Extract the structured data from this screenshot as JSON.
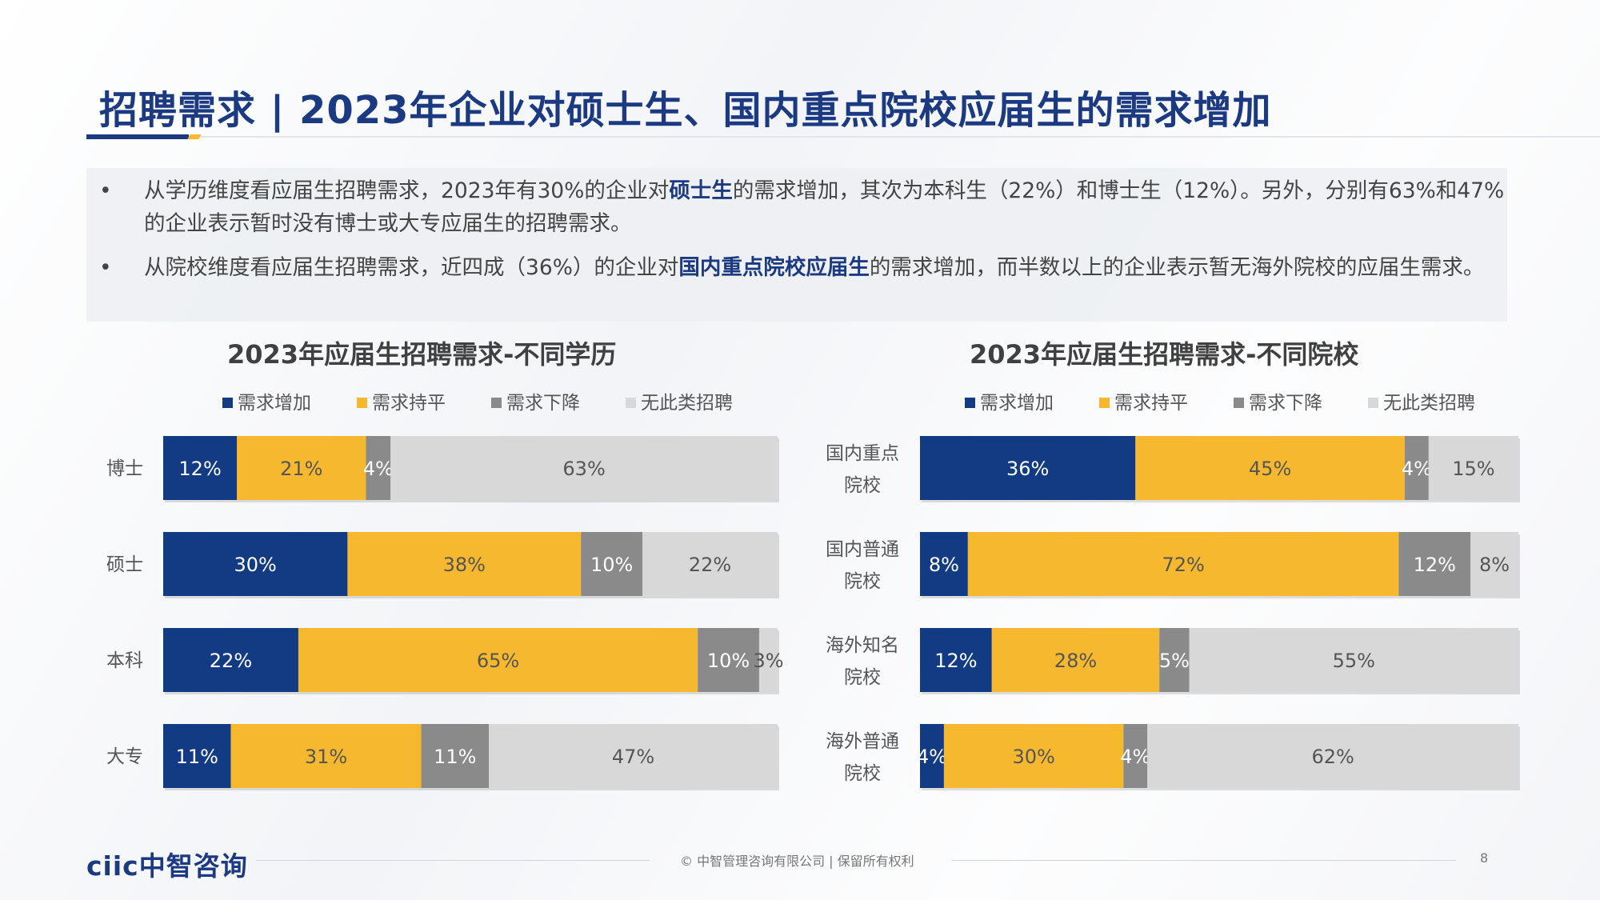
{
  "slide": {
    "title": "招聘需求 | 2023年企业对硕士生、国内重点院校应届生的需求增加",
    "page_number": "8",
    "footer_text": "© 中智管理咨询有限公司 | 保留所有权利",
    "logo_text": "ciic中智咨询"
  },
  "bullets": [
    {
      "dot": "•",
      "pre": "从学历维度看应届生招聘需求，2023年有30%的企业对",
      "bold": "硕士生",
      "post": "的需求增加，其次为本科生（22%）和博士生（12%）。另外，分别有63%和47%的企业表示暂时没有博士或大专应届生的招聘需求。"
    },
    {
      "dot": "•",
      "pre": "从院校维度看应届生招聘需求，近四成（36%）的企业对",
      "bold": "国内重点院校应届生",
      "post": "的需求增加，而半数以上的企业表示暂无海外院校的应届生需求。"
    }
  ],
  "colors": {
    "increase": "#123b84",
    "flat": "#f5b82e",
    "decrease": "#8a8a8a",
    "none": "#d8d8d8"
  },
  "chart_data": [
    {
      "type": "bar",
      "orientation": "horizontal",
      "stacked": "100%",
      "title": "2023年应届生招聘需求-不同学历",
      "categories": [
        "博士",
        "硕士",
        "本科",
        "大专"
      ],
      "series": [
        {
          "name": "需求增加",
          "values": [
            12,
            30,
            22,
            11
          ]
        },
        {
          "name": "需求持平",
          "values": [
            21,
            38,
            65,
            31
          ]
        },
        {
          "name": "需求下降",
          "values": [
            4,
            10,
            10,
            11
          ]
        },
        {
          "name": "无此类招聘",
          "values": [
            63,
            22,
            3,
            47
          ]
        }
      ],
      "legend_position": "top",
      "grid": false
    },
    {
      "type": "bar",
      "orientation": "horizontal",
      "stacked": "100%",
      "title": "2023年应届生招聘需求-不同院校",
      "categories": [
        "国内重点院校",
        "国内普通院校",
        "海外知名院校",
        "海外普通院校"
      ],
      "series": [
        {
          "name": "需求增加",
          "values": [
            36,
            8,
            12,
            4
          ]
        },
        {
          "name": "需求持平",
          "values": [
            45,
            72,
            28,
            30
          ]
        },
        {
          "name": "需求下降",
          "values": [
            4,
            12,
            5,
            4
          ]
        },
        {
          "name": "无此类招聘",
          "values": [
            15,
            8,
            55,
            62
          ]
        }
      ],
      "legend_position": "top",
      "grid": false
    }
  ]
}
